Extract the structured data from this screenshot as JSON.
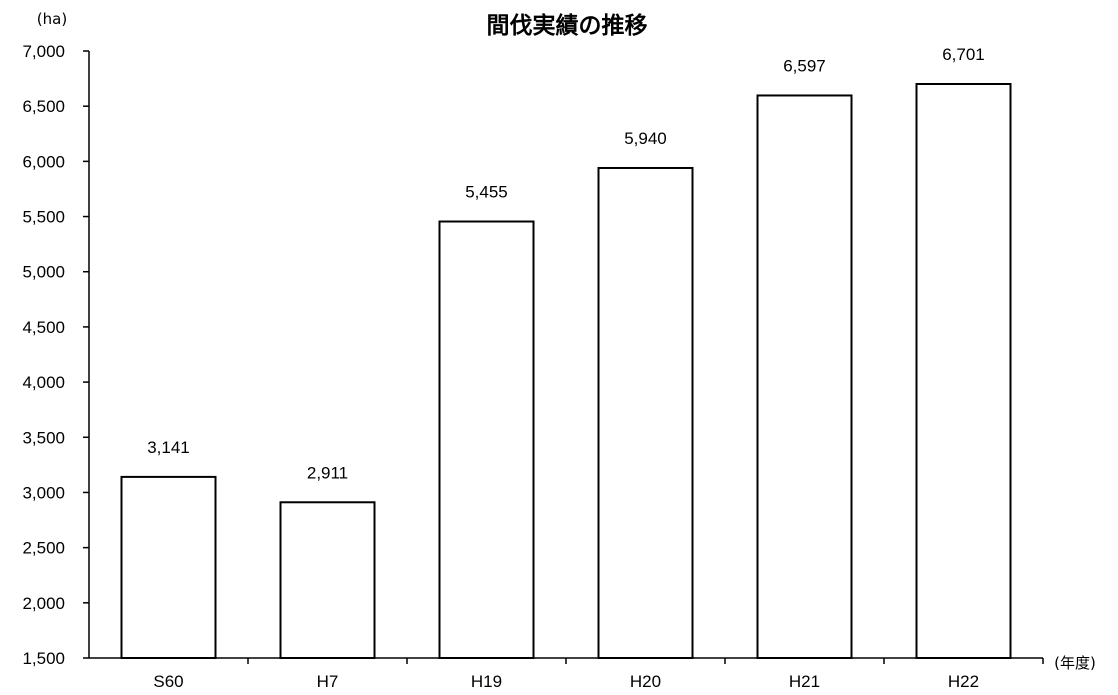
{
  "chart_data": {
    "type": "bar",
    "title": "間伐実績の推移",
    "ylabel": "(ha)",
    "xlabel": "(年度)",
    "categories": [
      "S60",
      "H7",
      "H19",
      "H20",
      "H21",
      "H22"
    ],
    "values": [
      3141,
      2911,
      5455,
      5940,
      6597,
      6701
    ],
    "value_labels": [
      "3,141",
      "2,911",
      "5,455",
      "5,940",
      "6,597",
      "6,701"
    ],
    "ylim": [
      1500,
      7000
    ],
    "ytick_labels": [
      "1,500",
      "2,000",
      "2,500",
      "3,000",
      "3,500",
      "4,000",
      "4,500",
      "5,000",
      "5,500",
      "6,000",
      "6,500",
      "7,000"
    ],
    "grid": false,
    "legend": "none",
    "colors": {
      "bar_fill": "#ffffff",
      "bar_stroke": "#000000",
      "axis": "#000000"
    }
  }
}
